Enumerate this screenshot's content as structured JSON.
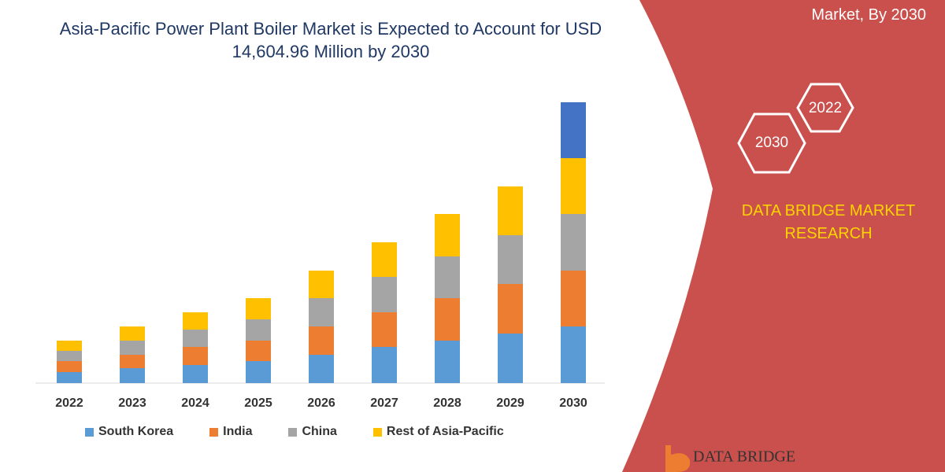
{
  "chart_data": {
    "type": "stacked-bar",
    "title": "Asia-Pacific Power Plant Boiler Market is Expected to Account for USD 14,604.96 Million by 2030",
    "categories": [
      "2022",
      "2023",
      "2024",
      "2025",
      "2026",
      "2027",
      "2028",
      "2029",
      "2030"
    ],
    "series": [
      {
        "name": "South Korea",
        "color": "#5b9bd5",
        "values": [
          14,
          19,
          23,
          28,
          36,
          46,
          54,
          63,
          72
        ]
      },
      {
        "name": "India",
        "color": "#ed7d31",
        "values": [
          14,
          17,
          23,
          26,
          36,
          44,
          54,
          63,
          71
        ]
      },
      {
        "name": "China",
        "color": "#a5a5a5",
        "values": [
          13,
          18,
          22,
          27,
          36,
          45,
          53,
          62,
          72
        ]
      },
      {
        "name": "Rest of Asia-Pacific",
        "color": "#ffc000",
        "values": [
          13,
          18,
          22,
          27,
          35,
          44,
          54,
          62,
          71
        ]
      },
      {
        "color": "#4472c4",
        "values": [
          null,
          null,
          null,
          null,
          null,
          null,
          null,
          null,
          71
        ]
      }
    ]
  },
  "panel": {
    "heading": "Market, By 2030",
    "badges": [
      "2022",
      "2030"
    ],
    "brand": "DATA BRIDGE MARKET RESEARCH",
    "logo": "DATA BRIDGE"
  }
}
